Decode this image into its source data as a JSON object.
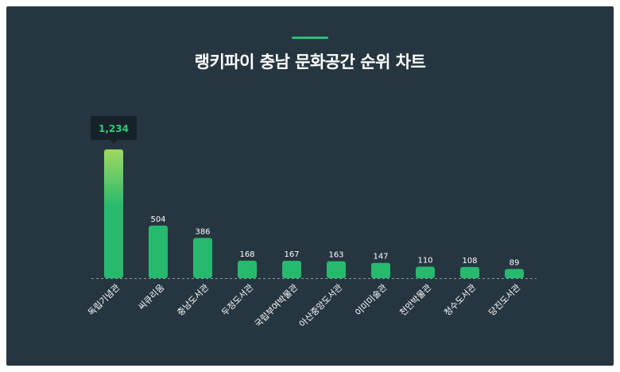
{
  "title": "랭키파이 충남 문화공간 순위 차트",
  "colors": {
    "background": "#263640",
    "bar": "#27ba6f",
    "bar_top_highlight": "#9fd85f",
    "accent": "#27c07a",
    "tooltip_bg": "#16222a",
    "tooltip_text": "#2ecc71"
  },
  "chart_data": {
    "type": "bar",
    "title": "랭키파이 충남 문화공간 순위 차트",
    "xlabel": "",
    "ylabel": "",
    "categories": [
      "독립기념관",
      "씨큐리움",
      "충남도서관",
      "두정도서관",
      "국립부여박물관",
      "아산중앙도서관",
      "이미미술관",
      "천안박물관",
      "청수도서관",
      "당진도서관"
    ],
    "values": [
      1234,
      504,
      386,
      168,
      167,
      163,
      147,
      110,
      108,
      89
    ],
    "value_labels": [
      "1,234",
      "504",
      "386",
      "168",
      "167",
      "163",
      "147",
      "110",
      "108",
      "89"
    ],
    "highlight_index": 0,
    "ylim": [
      0,
      1234
    ],
    "grid": false,
    "legend": "none"
  }
}
